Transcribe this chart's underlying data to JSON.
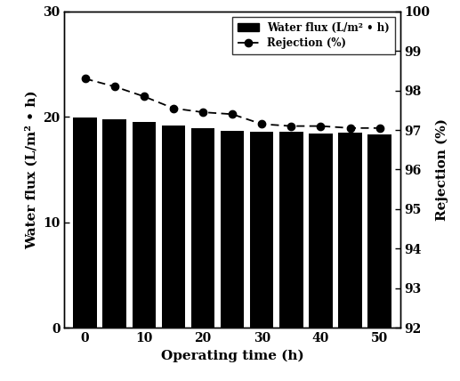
{
  "bar_x": [
    0,
    5,
    10,
    15,
    20,
    25,
    30,
    35,
    40,
    45,
    50
  ],
  "bar_heights": [
    19.9,
    19.8,
    19.5,
    19.2,
    18.9,
    18.7,
    18.6,
    18.6,
    18.4,
    18.5,
    18.3
  ],
  "rejection_x": [
    0,
    5,
    10,
    15,
    20,
    25,
    30,
    35,
    40,
    45,
    50
  ],
  "rejection_y": [
    98.3,
    98.1,
    97.85,
    97.55,
    97.45,
    97.4,
    97.15,
    97.1,
    97.1,
    97.05,
    97.05
  ],
  "bar_color": "#000000",
  "line_color": "#000000",
  "bar_width": 4.0,
  "ylim_left": [
    0,
    30
  ],
  "ylim_right": [
    92,
    100
  ],
  "yticks_left": [
    0,
    10,
    20,
    30
  ],
  "yticks_right": [
    92,
    93,
    94,
    95,
    96,
    97,
    98,
    99,
    100
  ],
  "xticks": [
    0,
    10,
    20,
    30,
    40,
    50
  ],
  "xlabel": "Operating time (h)",
  "ylabel_left": "Water flux (L/m² • h)",
  "ylabel_right": "Rejection (%)",
  "legend_bar_label": "Water flux (L/m² • h)",
  "legend_line_label": "Rejection (%)",
  "figsize": [
    5.17,
    4.28
  ],
  "dpi": 100
}
